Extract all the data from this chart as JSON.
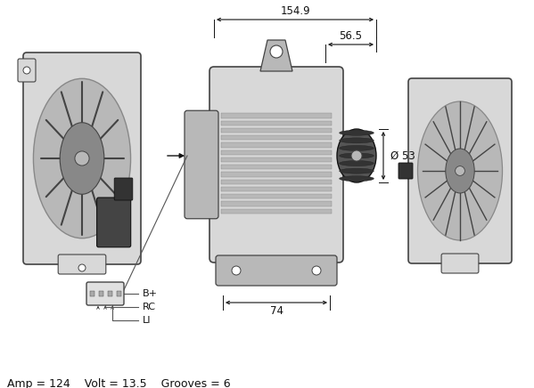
{
  "bg_color": "#ffffff",
  "dim_154_9": "154.9",
  "dim_56_5": "56.5",
  "dim_74": "74",
  "dim_53": "Ø 53",
  "specs_text": "Amp = 124    Volt = 13.5    Grooves = 6",
  "connector_labels": [
    "B+",
    "RC",
    "LI"
  ],
  "spec_fontsize": 9,
  "dim_fontsize": 8.5,
  "connector_fontsize": 8,
  "fig_width": 5.99,
  "fig_height": 4.36,
  "dpi": 100
}
